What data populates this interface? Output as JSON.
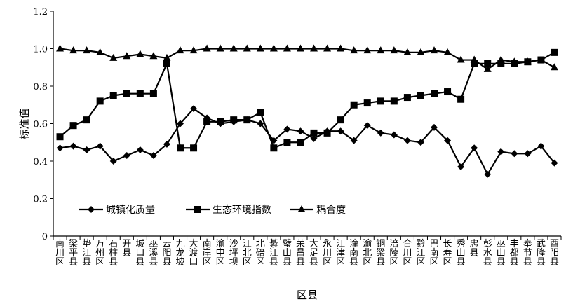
{
  "chart_data": {
    "type": "line",
    "xlabel": "区县",
    "ylabel": "标准值",
    "ylim": [
      0,
      1.2
    ],
    "yticks": [
      "0",
      "0.2",
      "0.4",
      "0.6",
      "0.8",
      "1.0",
      "1.2"
    ],
    "grid": false,
    "legend_position": "lower-left",
    "categories": [
      "南川区",
      "梁平县",
      "垫江县",
      "万州区",
      "石柱县",
      "开县",
      "城口县",
      "巫溪县",
      "云阳县",
      "九龙坡",
      "大渡口",
      "南岸区",
      "渝中区",
      "沙坪坝",
      "江北区",
      "北碚区",
      "綦江县",
      "璧山县",
      "荣昌县",
      "大足县",
      "永川区",
      "江津区",
      "潼南县",
      "渝北区",
      "铜梁县",
      "涪陵区",
      "合川区",
      "黔江区",
      "巴南区",
      "长寿区",
      "秀山县",
      "忠县",
      "彭水县",
      "巫山县",
      "丰都县",
      "奉节县",
      "武隆县",
      "酉阳县"
    ],
    "series": [
      {
        "name": "城镇化质量",
        "marker": "diamond",
        "values": [
          0.47,
          0.48,
          0.46,
          0.48,
          0.4,
          0.43,
          0.46,
          0.43,
          0.49,
          0.6,
          0.68,
          0.63,
          0.6,
          0.61,
          0.62,
          0.6,
          0.51,
          0.57,
          0.56,
          0.52,
          0.56,
          0.56,
          0.51,
          0.59,
          0.55,
          0.54,
          0.51,
          0.5,
          0.58,
          0.51,
          0.37,
          0.47,
          0.33,
          0.45,
          0.44,
          0.44,
          0.48,
          0.39
        ]
      },
      {
        "name": "生态环境指数",
        "marker": "square",
        "values": [
          0.53,
          0.59,
          0.62,
          0.72,
          0.75,
          0.76,
          0.76,
          0.76,
          0.92,
          0.47,
          0.47,
          0.61,
          0.61,
          0.62,
          0.62,
          0.66,
          0.47,
          0.5,
          0.5,
          0.55,
          0.55,
          0.62,
          0.7,
          0.71,
          0.72,
          0.72,
          0.74,
          0.75,
          0.76,
          0.77,
          0.73,
          0.92,
          0.92,
          0.92,
          0.92,
          0.93,
          0.94,
          0.98
        ]
      },
      {
        "name": "耦合度",
        "marker": "triangle",
        "values": [
          1.0,
          0.99,
          0.99,
          0.98,
          0.95,
          0.96,
          0.97,
          0.96,
          0.95,
          0.99,
          0.99,
          1.0,
          1.0,
          1.0,
          1.0,
          1.0,
          1.0,
          1.0,
          1.0,
          1.0,
          1.0,
          1.0,
          0.99,
          0.99,
          0.99,
          0.99,
          0.98,
          0.98,
          0.99,
          0.98,
          0.94,
          0.94,
          0.89,
          0.94,
          0.93,
          0.93,
          0.94,
          0.9
        ]
      }
    ]
  }
}
